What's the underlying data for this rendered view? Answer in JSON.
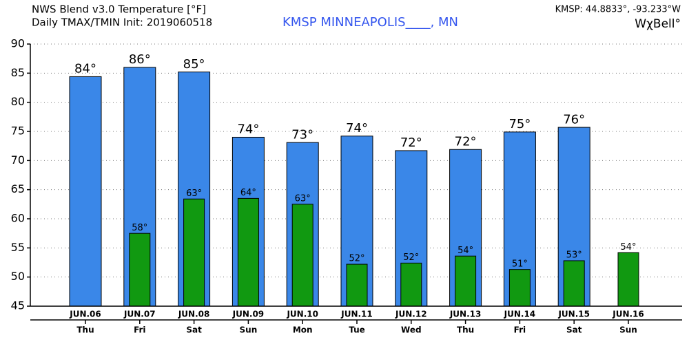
{
  "header": {
    "line1": "NWS Blend v3.0 Temperature [°F]",
    "line2": "Daily TMAX/TMIN Init: 2019060518",
    "station": "KMSP MINNEAPOLIS____, MN",
    "coords": "KMSP: 44.8833°, -93.233°W",
    "logo": "WχBell°"
  },
  "chart_data": {
    "type": "bar",
    "categories": [
      "JUN.06",
      "JUN.07",
      "JUN.08",
      "JUN.09",
      "JUN.10",
      "JUN.11",
      "JUN.12",
      "JUN.13",
      "JUN.14",
      "JUN.15",
      "JUN.16"
    ],
    "days": [
      "Thu",
      "Fri",
      "Sat",
      "Sun",
      "Mon",
      "Tue",
      "Wed",
      "Thu",
      "Fri",
      "Sat",
      "Sun"
    ],
    "series": [
      {
        "name": "TMAX",
        "color": "#3a87e8",
        "values": [
          84.4,
          86.0,
          85.2,
          74.0,
          73.1,
          74.2,
          71.7,
          71.9,
          74.9,
          75.7,
          null
        ],
        "value_labels": [
          "84°",
          "86°",
          "85°",
          "74°",
          "73°",
          "74°",
          "72°",
          "72°",
          "75°",
          "76°",
          null
        ]
      },
      {
        "name": "TMIN",
        "color": "#119911",
        "values": [
          null,
          57.5,
          63.4,
          63.5,
          62.5,
          52.2,
          52.4,
          53.6,
          51.3,
          52.8,
          54.2
        ],
        "value_labels": [
          null,
          "58°",
          "63°",
          "64°",
          "63°",
          "52°",
          "52°",
          "54°",
          "51°",
          "53°",
          "54°"
        ]
      }
    ],
    "ylim": [
      45,
      90
    ],
    "yticks": [
      45,
      50,
      55,
      60,
      65,
      70,
      75,
      80,
      85,
      90
    ],
    "grid": true
  }
}
